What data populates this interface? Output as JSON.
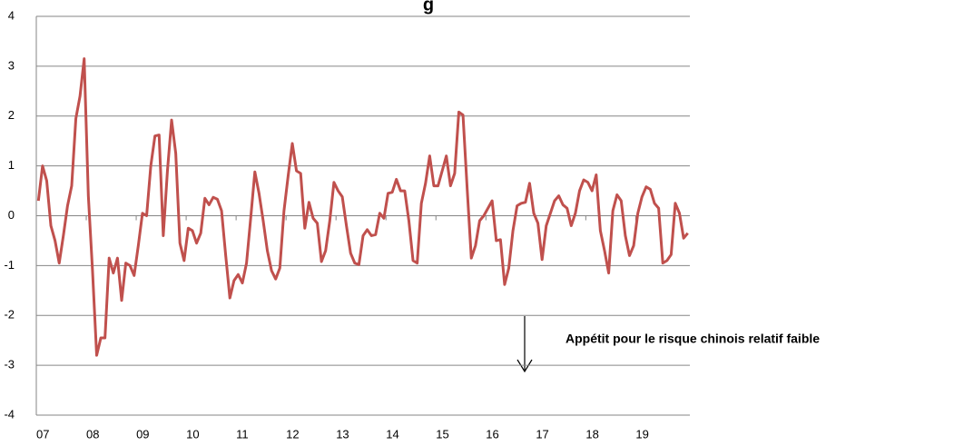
{
  "chart_data": {
    "type": "line",
    "title": "g",
    "annotation": "Appétit pour le risque chinois relatif faible",
    "x": [
      0,
      1,
      2,
      3,
      4,
      5,
      6,
      7,
      8,
      9,
      10,
      11,
      12,
      13,
      14,
      15,
      16,
      17,
      18,
      19,
      20,
      21,
      22,
      23,
      24,
      25,
      26,
      27,
      28,
      29,
      30,
      31,
      32,
      33,
      34,
      35,
      36,
      37,
      38,
      39,
      40,
      41,
      42,
      43,
      44,
      45,
      46,
      47,
      48,
      49,
      50,
      51,
      52,
      53,
      54,
      55,
      56,
      57,
      58,
      59,
      60,
      61,
      62,
      63,
      64,
      65,
      66,
      67,
      68,
      69,
      70,
      71,
      72,
      73,
      74,
      75,
      76,
      77,
      78,
      79,
      80,
      81,
      82,
      83,
      84,
      85,
      86,
      87,
      88,
      89,
      90,
      91,
      92,
      93,
      94,
      95,
      96,
      97,
      98,
      99,
      100,
      101,
      102,
      103,
      104,
      105,
      106,
      107,
      108,
      109,
      110,
      111,
      112,
      113,
      114,
      115,
      116,
      117,
      118,
      119,
      120,
      121,
      122,
      123,
      124,
      125,
      126,
      127,
      128,
      129,
      130,
      131,
      132,
      133,
      134,
      135,
      136,
      137,
      138,
      139,
      140,
      141,
      142,
      143,
      144,
      145,
      146,
      147,
      148,
      149,
      150,
      151,
      152,
      153,
      154,
      155,
      156
    ],
    "series": [
      {
        "color": "#c0504d",
        "values": [
          0.3,
          1.0,
          0.7,
          -0.2,
          -0.5,
          -0.95,
          -0.4,
          0.2,
          0.6,
          1.95,
          2.4,
          3.15,
          0.4,
          -1.1,
          -2.8,
          -2.45,
          -2.45,
          -0.85,
          -1.15,
          -0.85,
          -1.7,
          -0.95,
          -1.0,
          -1.2,
          -0.6,
          0.05,
          0,
          1.0,
          1.6,
          1.62,
          -0.4,
          0.9,
          1.92,
          1.25,
          -0.55,
          -0.9,
          -0.25,
          -0.3,
          -0.55,
          -0.35,
          0.35,
          0.22,
          0.37,
          0.33,
          0.1,
          -0.8,
          -1.65,
          -1.3,
          -1.18,
          -1.35,
          -0.95,
          -0.05,
          0.88,
          0.45,
          -0.1,
          -0.7,
          -1.1,
          -1.27,
          -1.05,
          0.1,
          0.8,
          1.45,
          0.9,
          0.85,
          -0.25,
          0.27,
          -0.05,
          -0.15,
          -0.92,
          -0.7,
          -0.1,
          0.67,
          0.5,
          0.38,
          -0.2,
          -0.75,
          -0.95,
          -0.98,
          -0.4,
          -0.28,
          -0.4,
          -0.38,
          0.05,
          -0.05,
          0.45,
          0.47,
          0.73,
          0.5,
          0.5,
          -0.1,
          -0.9,
          -0.95,
          0.25,
          0.65,
          1.2,
          0.6,
          0.6,
          0.9,
          1.2,
          0.6,
          0.85,
          2.08,
          2.02,
          0.55,
          -0.85,
          -0.6,
          -0.1,
          0,
          0.15,
          0.3,
          -0.5,
          -0.48,
          -1.38,
          -1.05,
          -0.3,
          0.2,
          0.25,
          0.27,
          0.65,
          0.05,
          -0.15,
          -0.88,
          -0.2,
          0.05,
          0.3,
          0.4,
          0.22,
          0.15,
          -0.2,
          0.05,
          0.5,
          0.72,
          0.67,
          0.5,
          0.82,
          -0.3,
          -0.7,
          -1.15,
          0.1,
          0.42,
          0.3,
          -0.4,
          -0.8,
          -0.6,
          0.05,
          0.38,
          0.58,
          0.53,
          0.25,
          0.15,
          -0.95,
          -0.9,
          -0.78,
          0.25,
          0.05,
          -0.45,
          -0.35
        ]
      }
    ],
    "xlim": [
      -0.5,
      156.5
    ],
    "xticks": [
      {
        "value": -0.5,
        "label": "07"
      },
      {
        "value": 11.5,
        "label": "08"
      },
      {
        "value": 23.5,
        "label": "09"
      },
      {
        "value": 35.5,
        "label": "10"
      },
      {
        "value": 47.5,
        "label": "11"
      },
      {
        "value": 59.5,
        "label": "12"
      },
      {
        "value": 71.5,
        "label": "13"
      },
      {
        "value": 83.5,
        "label": "14"
      },
      {
        "value": 95.5,
        "label": "15"
      },
      {
        "value": 107.5,
        "label": "16"
      },
      {
        "value": 119.5,
        "label": "17"
      },
      {
        "value": 131.5,
        "label": "18"
      },
      {
        "value": 143.5,
        "label": "19"
      }
    ],
    "ylim": [
      -4,
      4
    ],
    "yticks": [
      -4,
      -3,
      -2,
      -1,
      0,
      1,
      2,
      3,
      4
    ],
    "grid": true
  }
}
